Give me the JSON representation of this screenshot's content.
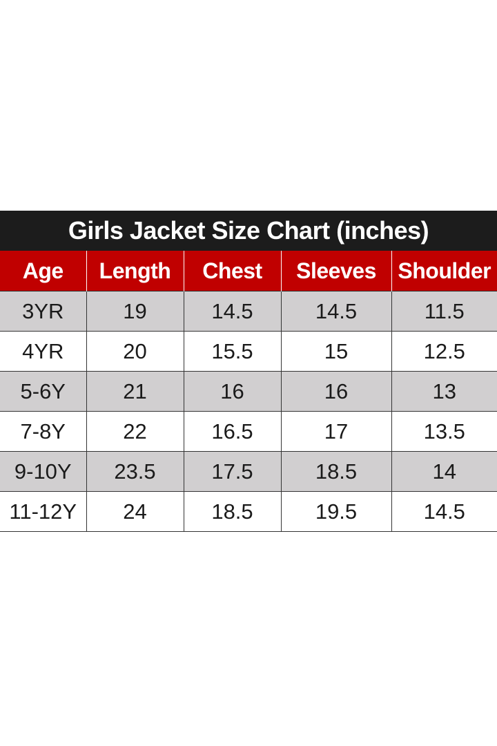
{
  "title": "Girls Jacket Size Chart (inches)",
  "colors": {
    "title_bg": "#1c1c1c",
    "header_bg": "#c00000",
    "shaded_row": "#d1cfd0"
  },
  "headers": [
    "Age",
    "Length",
    "Chest",
    "Sleeves",
    "Shoulder"
  ],
  "rows": [
    [
      "3YR",
      "19",
      "14.5",
      "14.5",
      "11.5"
    ],
    [
      "4YR",
      "20",
      "15.5",
      "15",
      "12.5"
    ],
    [
      "5-6Y",
      "21",
      "16",
      "16",
      "13"
    ],
    [
      "7-8Y",
      "22",
      "16.5",
      "17",
      "13.5"
    ],
    [
      "9-10Y",
      "23.5",
      "17.5",
      "18.5",
      "14"
    ],
    [
      "11-12Y",
      "24",
      "18.5",
      "19.5",
      "14.5"
    ]
  ]
}
